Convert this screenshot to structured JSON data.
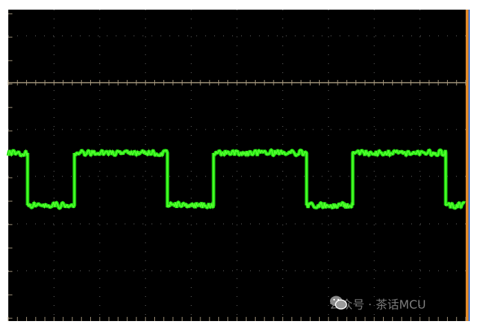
{
  "watermark": {
    "text": "公众号 · 茶话MCU"
  }
}
